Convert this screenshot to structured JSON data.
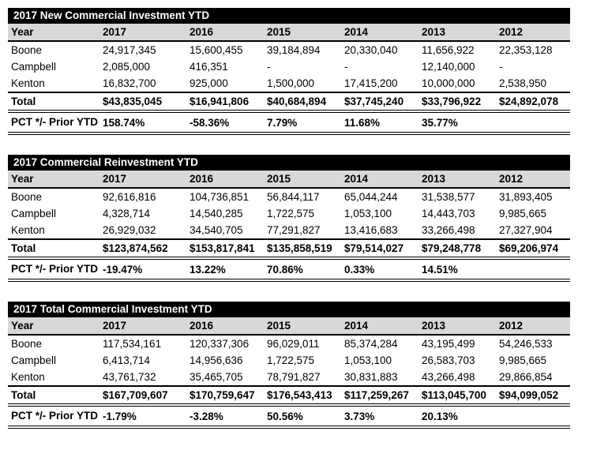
{
  "colors": {
    "title_bar_bg": "#000000",
    "title_bar_text": "#ffffff",
    "header_row_bg": "#d8d8d8",
    "text": "#000000"
  },
  "tables": [
    {
      "title": "2017 New Commercial Investment YTD",
      "columns": [
        "Year",
        "2017",
        "2016",
        "2015",
        "2014",
        "2013",
        "2012"
      ],
      "rows": [
        {
          "label": "Boone",
          "values": [
            "24,917,345",
            "15,600,455",
            "39,184,894",
            "20,330,040",
            "11,656,922",
            "22,353,128"
          ]
        },
        {
          "label": "Campbell",
          "values": [
            "2,085,000",
            "416,351",
            "-",
            "-",
            "12,140,000",
            "-"
          ]
        },
        {
          "label": "Kenton",
          "values": [
            "16,832,700",
            "925,000",
            "1,500,000",
            "17,415,200",
            "10,000,000",
            "2,538,950"
          ]
        }
      ],
      "total": {
        "label": "Total",
        "values": [
          "$43,835,045",
          "$16,941,806",
          "$40,684,894",
          "$37,745,240",
          "$33,796,922",
          "$24,892,078"
        ]
      },
      "pct": {
        "label": "PCT */- Prior YTD",
        "values": [
          "158.74%",
          "-58.36%",
          "7.79%",
          "11.68%",
          "35.77%",
          ""
        ]
      }
    },
    {
      "title": "2017 Commercial Reinvestment YTD",
      "columns": [
        "Year",
        "2017",
        "2016",
        "2015",
        "2014",
        "2013",
        "2012"
      ],
      "rows": [
        {
          "label": "Boone",
          "values": [
            "92,616,816",
            "104,736,851",
            "56,844,117",
            "65,044,244",
            "31,538,577",
            "31,893,405"
          ]
        },
        {
          "label": "Campbell",
          "values": [
            "4,328,714",
            "14,540,285",
            "1,722,575",
            "1,053,100",
            "14,443,703",
            "9,985,665"
          ]
        },
        {
          "label": "Kenton",
          "values": [
            "26,929,032",
            "34,540,705",
            "77,291,827",
            "13,416,683",
            "33,266,498",
            "27,327,904"
          ]
        }
      ],
      "total": {
        "label": "Total",
        "values": [
          "$123,874,562",
          "$153,817,841",
          "$135,858,519",
          "$79,514,027",
          "$79,248,778",
          "$69,206,974"
        ]
      },
      "pct": {
        "label": "PCT */- Prior YTD",
        "values": [
          "-19.47%",
          "13.22%",
          "70.86%",
          "0.33%",
          "14.51%",
          ""
        ]
      }
    },
    {
      "title": "2017 Total Commercial Investment YTD",
      "columns": [
        "Year",
        "2017",
        "2016",
        "2015",
        "2014",
        "2013",
        "2012"
      ],
      "rows": [
        {
          "label": "Boone",
          "values": [
            "117,534,161",
            "120,337,306",
            "96,029,011",
            "85,374,284",
            "43,195,499",
            "54,246,533"
          ]
        },
        {
          "label": "Campbell",
          "values": [
            "6,413,714",
            "14,956,636",
            "1,722,575",
            "1,053,100",
            "26,583,703",
            "9,985,665"
          ]
        },
        {
          "label": "Kenton",
          "values": [
            "43,761,732",
            "35,465,705",
            "78,791,827",
            "30,831,883",
            "43,266,498",
            "29,866,854"
          ]
        }
      ],
      "total": {
        "label": "Total",
        "values": [
          "$167,709,607",
          "$170,759,647",
          "$176,543,413",
          "$117,259,267",
          "$113,045,700",
          "$94,099,052"
        ]
      },
      "pct": {
        "label": "PCT */- Prior YTD",
        "values": [
          "-1.79%",
          "-3.28%",
          "50.56%",
          "3.73%",
          "20.13%",
          ""
        ]
      }
    }
  ]
}
